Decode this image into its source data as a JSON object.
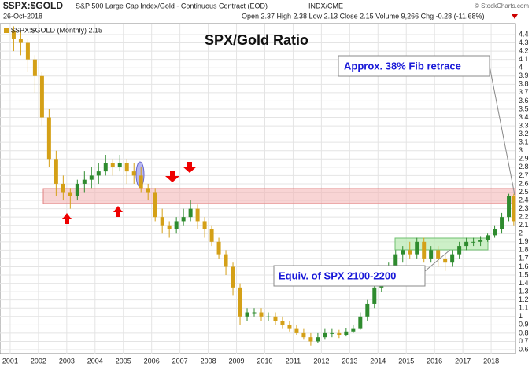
{
  "chart_data": {
    "type": "candlestick",
    "symbol": "$SPX:$GOLD",
    "description": "S&P 500 Large Cap Index/Gold - Continuous Contract (EOD)",
    "exchange": "INDX/CME",
    "date": "26-Oct-2018",
    "quote": "Open 2.37 High 2.38 Low 2.13 Close 2.15 Volume 9,266 Chg -0.28 (-11.68%)",
    "copyright": "© StockCharts.com",
    "title": "SPX/Gold Ratio",
    "annotations": [
      "Approx. 38% Fib retrace",
      "Equiv. of SPX 2100-2200"
    ],
    "x": [
      2001.125,
      2001.375,
      2001.625,
      2001.875,
      2002.125,
      2002.375,
      2002.625,
      2002.875,
      2003.125,
      2003.375,
      2003.625,
      2003.875,
      2004.125,
      2004.375,
      2004.625,
      2004.875,
      2005.125,
      2005.375,
      2005.625,
      2005.875,
      2006.125,
      2006.375,
      2006.625,
      2006.875,
      2007.125,
      2007.375,
      2007.625,
      2007.875,
      2008.125,
      2008.375,
      2008.625,
      2008.875,
      2009.125,
      2009.375,
      2009.625,
      2009.875,
      2010.125,
      2010.375,
      2010.625,
      2010.875,
      2011.125,
      2011.375,
      2011.625,
      2011.875,
      2012.125,
      2012.375,
      2012.625,
      2012.875,
      2013.125,
      2013.375,
      2013.625,
      2013.875,
      2014.125,
      2014.375,
      2014.625,
      2014.875,
      2015.125,
      2015.375,
      2015.625,
      2015.875,
      2016.125,
      2016.375,
      2016.625,
      2016.875,
      2017.125,
      2017.375,
      2017.625,
      2017.875,
      2018.125,
      2018.375,
      2018.625,
      2018.8
    ],
    "series": [
      {
        "name": "$SPX:$GOLD (Monthly) 2.15",
        "up_color": "#2e8b2e",
        "down_color": "#d4a017",
        "values": [
          [
            4.45,
            4.5,
            4.2,
            4.35
          ],
          [
            4.35,
            4.45,
            4.15,
            4.3
          ],
          [
            4.3,
            4.35,
            3.95,
            4.1
          ],
          [
            4.1,
            4.15,
            3.7,
            3.9
          ],
          [
            3.9,
            3.95,
            3.3,
            3.4
          ],
          [
            3.4,
            3.5,
            2.8,
            2.9
          ],
          [
            2.9,
            3.0,
            2.45,
            2.6
          ],
          [
            2.6,
            2.7,
            2.4,
            2.5
          ],
          [
            2.5,
            2.55,
            2.3,
            2.45
          ],
          [
            2.45,
            2.65,
            2.4,
            2.6
          ],
          [
            2.6,
            2.75,
            2.5,
            2.65
          ],
          [
            2.65,
            2.8,
            2.55,
            2.7
          ],
          [
            2.7,
            2.85,
            2.6,
            2.75
          ],
          [
            2.75,
            2.95,
            2.7,
            2.85
          ],
          [
            2.85,
            2.9,
            2.7,
            2.8
          ],
          [
            2.8,
            2.95,
            2.75,
            2.85
          ],
          [
            2.85,
            2.9,
            2.6,
            2.75
          ],
          [
            2.75,
            2.85,
            2.6,
            2.7
          ],
          [
            2.7,
            2.8,
            2.5,
            2.55
          ],
          [
            2.55,
            2.6,
            2.4,
            2.5
          ],
          [
            2.5,
            2.55,
            2.15,
            2.2
          ],
          [
            2.2,
            2.3,
            2.0,
            2.1
          ],
          [
            2.1,
            2.15,
            1.95,
            2.05
          ],
          [
            2.05,
            2.2,
            2.0,
            2.15
          ],
          [
            2.15,
            2.3,
            2.1,
            2.2
          ],
          [
            2.2,
            2.4,
            2.15,
            2.3
          ],
          [
            2.3,
            2.35,
            2.05,
            2.15
          ],
          [
            2.15,
            2.2,
            1.95,
            2.05
          ],
          [
            2.05,
            2.1,
            1.85,
            1.9
          ],
          [
            1.9,
            1.95,
            1.7,
            1.75
          ],
          [
            1.75,
            1.8,
            1.5,
            1.6
          ],
          [
            1.6,
            1.65,
            1.25,
            1.35
          ],
          [
            1.35,
            1.4,
            0.9,
            1.0
          ],
          [
            1.0,
            1.1,
            0.95,
            1.05
          ],
          [
            1.05,
            1.1,
            1.0,
            1.05
          ],
          [
            1.05,
            1.1,
            0.95,
            1.0
          ],
          [
            1.0,
            1.05,
            0.95,
            1.0
          ],
          [
            1.0,
            1.05,
            0.9,
            0.95
          ],
          [
            0.95,
            1.0,
            0.85,
            0.9
          ],
          [
            0.9,
            0.95,
            0.82,
            0.85
          ],
          [
            0.85,
            0.9,
            0.78,
            0.8
          ],
          [
            0.8,
            0.85,
            0.72,
            0.75
          ],
          [
            0.75,
            0.8,
            0.65,
            0.7
          ],
          [
            0.7,
            0.8,
            0.68,
            0.75
          ],
          [
            0.75,
            0.85,
            0.72,
            0.8
          ],
          [
            0.8,
            0.85,
            0.75,
            0.8
          ],
          [
            0.8,
            0.84,
            0.74,
            0.78
          ],
          [
            0.78,
            0.86,
            0.76,
            0.82
          ],
          [
            0.82,
            0.9,
            0.8,
            0.85
          ],
          [
            0.85,
            1.05,
            0.84,
            1.0
          ],
          [
            1.0,
            1.2,
            0.95,
            1.15
          ],
          [
            1.15,
            1.4,
            1.1,
            1.35
          ],
          [
            1.35,
            1.5,
            1.3,
            1.45
          ],
          [
            1.45,
            1.65,
            1.4,
            1.6
          ],
          [
            1.6,
            1.8,
            1.55,
            1.75
          ],
          [
            1.75,
            1.85,
            1.65,
            1.8
          ],
          [
            1.8,
            1.9,
            1.7,
            1.75
          ],
          [
            1.75,
            1.95,
            1.7,
            1.9
          ],
          [
            1.9,
            1.95,
            1.65,
            1.7
          ],
          [
            1.7,
            1.85,
            1.65,
            1.8
          ],
          [
            1.8,
            1.85,
            1.6,
            1.7
          ],
          [
            1.7,
            1.75,
            1.55,
            1.65
          ],
          [
            1.65,
            1.8,
            1.6,
            1.75
          ],
          [
            1.75,
            1.9,
            1.7,
            1.85
          ],
          [
            1.85,
            1.95,
            1.8,
            1.9
          ],
          [
            1.9,
            1.95,
            1.85,
            1.9
          ],
          [
            1.9,
            1.97,
            1.85,
            1.92
          ],
          [
            1.92,
            2.0,
            1.9,
            1.98
          ],
          [
            1.98,
            2.1,
            1.95,
            2.05
          ],
          [
            2.05,
            2.25,
            2.0,
            2.2
          ],
          [
            2.2,
            2.48,
            2.15,
            2.45
          ],
          [
            2.45,
            2.48,
            2.1,
            2.15
          ]
        ]
      }
    ],
    "xlim": [
      2000.64,
      2018.86
    ],
    "xticks": [
      2001,
      2002,
      2003,
      2004,
      2005,
      2006,
      2007,
      2008,
      2009,
      2010,
      2011,
      2012,
      2013,
      2014,
      2015,
      2016,
      2017,
      2018
    ],
    "ylim": [
      0.6,
      4.4
    ],
    "yticks": [
      0.6,
      0.7,
      0.8,
      0.9,
      1.0,
      1.1,
      1.2,
      1.3,
      1.4,
      1.5,
      1.6,
      1.7,
      1.8,
      1.9,
      2.0,
      2.1,
      2.2,
      2.3,
      2.4,
      2.5,
      2.6,
      2.7,
      2.8,
      2.9,
      3.0,
      3.1,
      3.2,
      3.3,
      3.4,
      3.5,
      3.6,
      3.7,
      3.8,
      3.9,
      4.0,
      4.1,
      4.2,
      4.3,
      4.4
    ],
    "grid": true
  }
}
